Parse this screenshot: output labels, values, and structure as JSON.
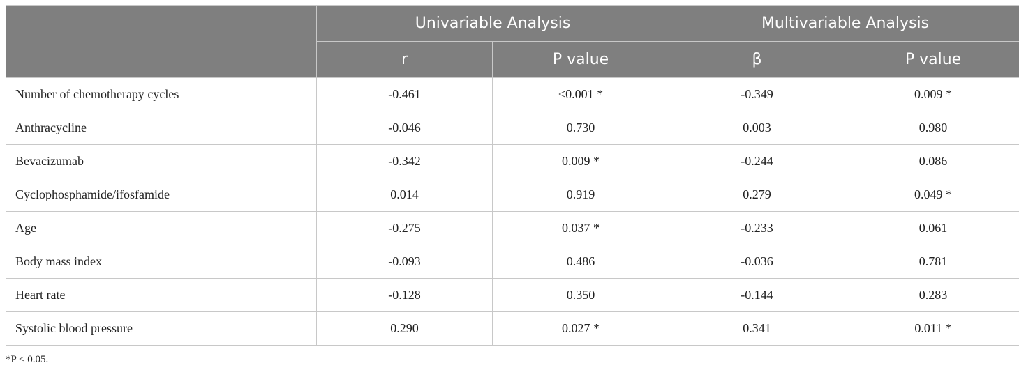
{
  "header": {
    "group_univariable": "Univariable Analysis",
    "group_multivariable": "Multivariable Analysis",
    "col_r": "r",
    "col_p_uni": "P value",
    "col_beta": "β",
    "col_p_multi": "P value"
  },
  "rows": [
    {
      "variable": "Number of chemotherapy cycles",
      "r": "-0.461",
      "p_uni": "<0.001 *",
      "beta": "-0.349",
      "p_multi": "0.009 *"
    },
    {
      "variable": "Anthracycline",
      "r": "-0.046",
      "p_uni": "0.730",
      "beta": "0.003",
      "p_multi": "0.980"
    },
    {
      "variable": "Bevacizumab",
      "r": "-0.342",
      "p_uni": "0.009 *",
      "beta": "-0.244",
      "p_multi": "0.086"
    },
    {
      "variable": "Cyclophosphamide/ifosfamide",
      "r": "0.014",
      "p_uni": "0.919",
      "beta": "0.279",
      "p_multi": "0.049 *"
    },
    {
      "variable": "Age",
      "r": "-0.275",
      "p_uni": "0.037 *",
      "beta": "-0.233",
      "p_multi": "0.061"
    },
    {
      "variable": "Body mass index",
      "r": "-0.093",
      "p_uni": "0.486",
      "beta": "-0.036",
      "p_multi": "0.781"
    },
    {
      "variable": "Heart rate",
      "r": "-0.128",
      "p_uni": "0.350",
      "beta": "-0.144",
      "p_multi": "0.283"
    },
    {
      "variable": "Systolic blood pressure",
      "r": "0.290",
      "p_uni": "0.027 *",
      "beta": "0.341",
      "p_multi": "0.011 *"
    }
  ],
  "footnote": "*P < 0.05.",
  "colors": {
    "header_bg": "#7f7f7f",
    "header_text": "#ffffff",
    "border": "#c8c8c8"
  }
}
